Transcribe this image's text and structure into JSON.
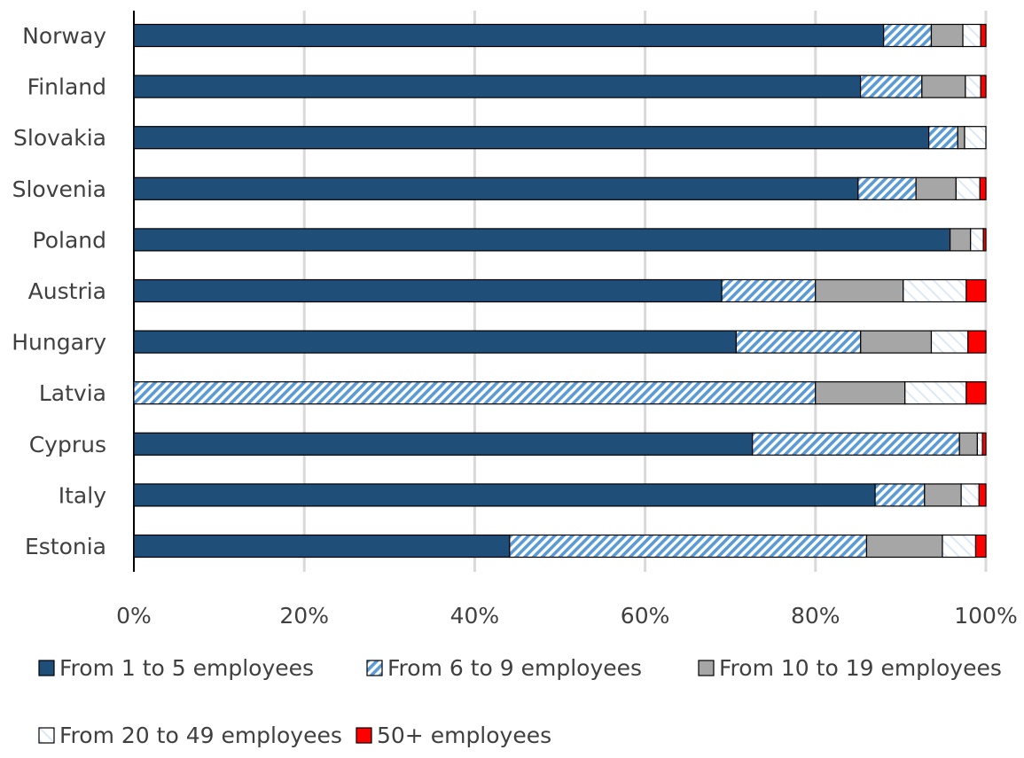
{
  "chart_data": {
    "type": "bar",
    "orientation": "horizontal",
    "stacked": "percent",
    "categories": [
      "Norway",
      "Finland",
      "Slovakia",
      "Slovenia",
      "Poland",
      "Austria",
      "Hungary",
      "Latvia",
      "Cyprus",
      "Italy",
      "Estonia"
    ],
    "series": [
      {
        "name": "From 1 to 5 employees",
        "pattern": "solid",
        "color": "#1f4e79",
        "values": [
          88.0,
          85.2,
          93.3,
          85.0,
          95.8,
          69.0,
          70.7,
          0.0,
          72.6,
          87.0,
          44.1
        ]
      },
      {
        "name": "From 6 to 9 employees",
        "pattern": "hatch",
        "color": "#5b9bd5",
        "values": [
          5.6,
          7.2,
          3.4,
          6.8,
          0.0,
          11.0,
          14.6,
          80.0,
          24.3,
          5.8,
          41.9
        ]
      },
      {
        "name": "From 10 to 19 employees",
        "pattern": "solid",
        "color": "#a6a6a6",
        "values": [
          3.7,
          5.1,
          0.8,
          4.7,
          2.4,
          10.3,
          8.3,
          10.5,
          2.1,
          4.3,
          8.9
        ]
      },
      {
        "name": "From 20 to 49 employees",
        "pattern": "hatch-light",
        "color": "#ffffff",
        "values": [
          2.1,
          1.8,
          2.5,
          2.8,
          1.5,
          7.4,
          4.3,
          7.2,
          0.6,
          2.1,
          3.9
        ]
      },
      {
        "name": "50+ employees",
        "pattern": "solid",
        "color": "#ff0000",
        "values": [
          0.6,
          0.6,
          0.0,
          0.7,
          0.3,
          2.3,
          2.1,
          2.3,
          0.4,
          0.8,
          1.2
        ]
      }
    ],
    "xlim": [
      0,
      100
    ],
    "x_ticks": [
      "0%",
      "20%",
      "40%",
      "60%",
      "80%",
      "100%"
    ],
    "grid": "vertical",
    "legend_position": "bottom"
  }
}
